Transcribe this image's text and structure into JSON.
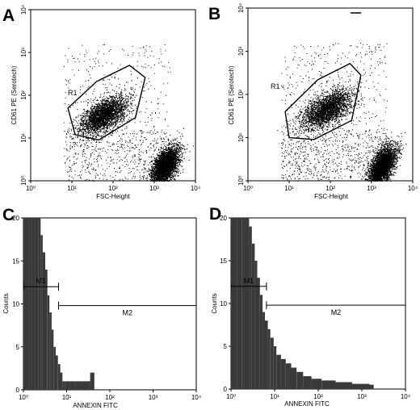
{
  "chart_data": [
    {
      "panel": "A",
      "type": "scatter",
      "xlabel": "FSC-Height",
      "ylabel": "CD61 PE (Serotech)",
      "xscale": "log",
      "yscale": "log",
      "xlim": [
        1,
        10000
      ],
      "ylim": [
        1,
        10000
      ],
      "xticks": [
        "10⁰",
        "10¹",
        "10²",
        "10³",
        "10⁴"
      ],
      "yticks": [
        "10⁰",
        "10¹",
        "10²",
        "10³",
        "10⁴"
      ],
      "clusters": [
        {
          "center": [
            60,
            35
          ],
          "spread": [
            0.28,
            0.22
          ],
          "count": 2600
        },
        {
          "center": [
            1800,
            2.2
          ],
          "spread": [
            0.17,
            0.24
          ],
          "count": 3400
        }
      ],
      "background_points": 900,
      "gate": {
        "label": "R1",
        "polygon": [
          [
            8,
            50
          ],
          [
            40,
            210
          ],
          [
            250,
            500
          ],
          [
            600,
            260
          ],
          [
            350,
            30
          ],
          [
            45,
            9
          ],
          [
            12,
            12
          ]
        ]
      },
      "grid": false,
      "legend": "none"
    },
    {
      "panel": "B",
      "type": "scatter",
      "xlabel": "FSC-Height",
      "ylabel": "CD61 PE (Serotech)",
      "xscale": "log",
      "yscale": "log",
      "xlim": [
        1,
        10000
      ],
      "ylim": [
        1,
        10000
      ],
      "xticks": [
        "10⁰",
        "10¹",
        "10²",
        "10³",
        "10⁴"
      ],
      "yticks": [
        "10⁰",
        "10¹",
        "10²",
        "10³",
        "10⁴"
      ],
      "clusters": [
        {
          "center": [
            80,
            45
          ],
          "spread": [
            0.3,
            0.22
          ],
          "count": 2400
        },
        {
          "center": [
            1800,
            2.2
          ],
          "spread": [
            0.17,
            0.24
          ],
          "count": 3200
        }
      ],
      "background_points": 1100,
      "gate": {
        "label": "R1",
        "polygon": [
          [
            8,
            40
          ],
          [
            50,
            220
          ],
          [
            300,
            520
          ],
          [
            550,
            280
          ],
          [
            330,
            25
          ],
          [
            40,
            9
          ],
          [
            10,
            10
          ]
        ]
      },
      "grid": false,
      "legend": "none"
    },
    {
      "panel": "C",
      "type": "histogram",
      "xlabel": "ANNEXIN FITC",
      "ylabel": "Counts",
      "xscale": "log",
      "xlim": [
        1,
        10000
      ],
      "ylim": [
        0,
        20
      ],
      "xticks": [
        "10⁰",
        "10¹",
        "10²",
        "10³",
        "10⁴"
      ],
      "yticks": [
        "0",
        "5",
        "10",
        "15",
        "20"
      ],
      "bins": [
        [
          1.0,
          20
        ],
        [
          1.3,
          20
        ],
        [
          1.6,
          20
        ],
        [
          1.9,
          20
        ],
        [
          2.2,
          20
        ],
        [
          2.5,
          18
        ],
        [
          2.8,
          16
        ],
        [
          3.2,
          14
        ],
        [
          3.6,
          11
        ],
        [
          4.0,
          9
        ],
        [
          4.5,
          7
        ],
        [
          5.0,
          5
        ],
        [
          5.6,
          4
        ],
        [
          6.3,
          3
        ],
        [
          7.1,
          2
        ],
        [
          8.0,
          1
        ],
        [
          9.0,
          1
        ],
        [
          12,
          1
        ],
        [
          16,
          1
        ],
        [
          35,
          2
        ]
      ],
      "markers": [
        {
          "label": "M1",
          "range": [
            1,
            6.5
          ],
          "y": 12
        },
        {
          "label": "M2",
          "range": [
            6.5,
            10000
          ],
          "y": 9.8
        }
      ],
      "grid": false,
      "legend": "none"
    },
    {
      "panel": "D",
      "type": "histogram",
      "xlabel": "ANNEXIN FITC",
      "ylabel": "Counts",
      "xscale": "log",
      "xlim": [
        1,
        10000
      ],
      "ylim": [
        0,
        20
      ],
      "xticks": [
        "10⁰",
        "10¹",
        "10²",
        "10³",
        "10⁴"
      ],
      "yticks": [
        "0",
        "5",
        "10",
        "15",
        "20"
      ],
      "bins": [
        [
          1.0,
          20
        ],
        [
          1.4,
          20
        ],
        [
          1.8,
          20
        ],
        [
          2.2,
          20
        ],
        [
          2.6,
          19
        ],
        [
          3.0,
          17
        ],
        [
          3.5,
          15
        ],
        [
          4.0,
          13
        ],
        [
          4.6,
          11
        ],
        [
          5.3,
          9
        ],
        [
          6.0,
          8
        ],
        [
          7.0,
          7
        ],
        [
          8.0,
          6
        ],
        [
          9.5,
          5
        ],
        [
          11,
          4
        ],
        [
          14,
          3.5
        ],
        [
          18,
          3
        ],
        [
          24,
          2.5
        ],
        [
          32,
          2
        ],
        [
          45,
          1.5
        ],
        [
          70,
          1.2
        ],
        [
          120,
          1
        ],
        [
          250,
          0.8
        ],
        [
          600,
          0.6
        ],
        [
          1500,
          0.5
        ]
      ],
      "markers": [
        {
          "label": "M1",
          "range": [
            1,
            6.5
          ],
          "y": 12
        },
        {
          "label": "M2",
          "range": [
            6.5,
            10000
          ],
          "y": 9.8
        }
      ],
      "grid": false,
      "legend": "none"
    }
  ]
}
